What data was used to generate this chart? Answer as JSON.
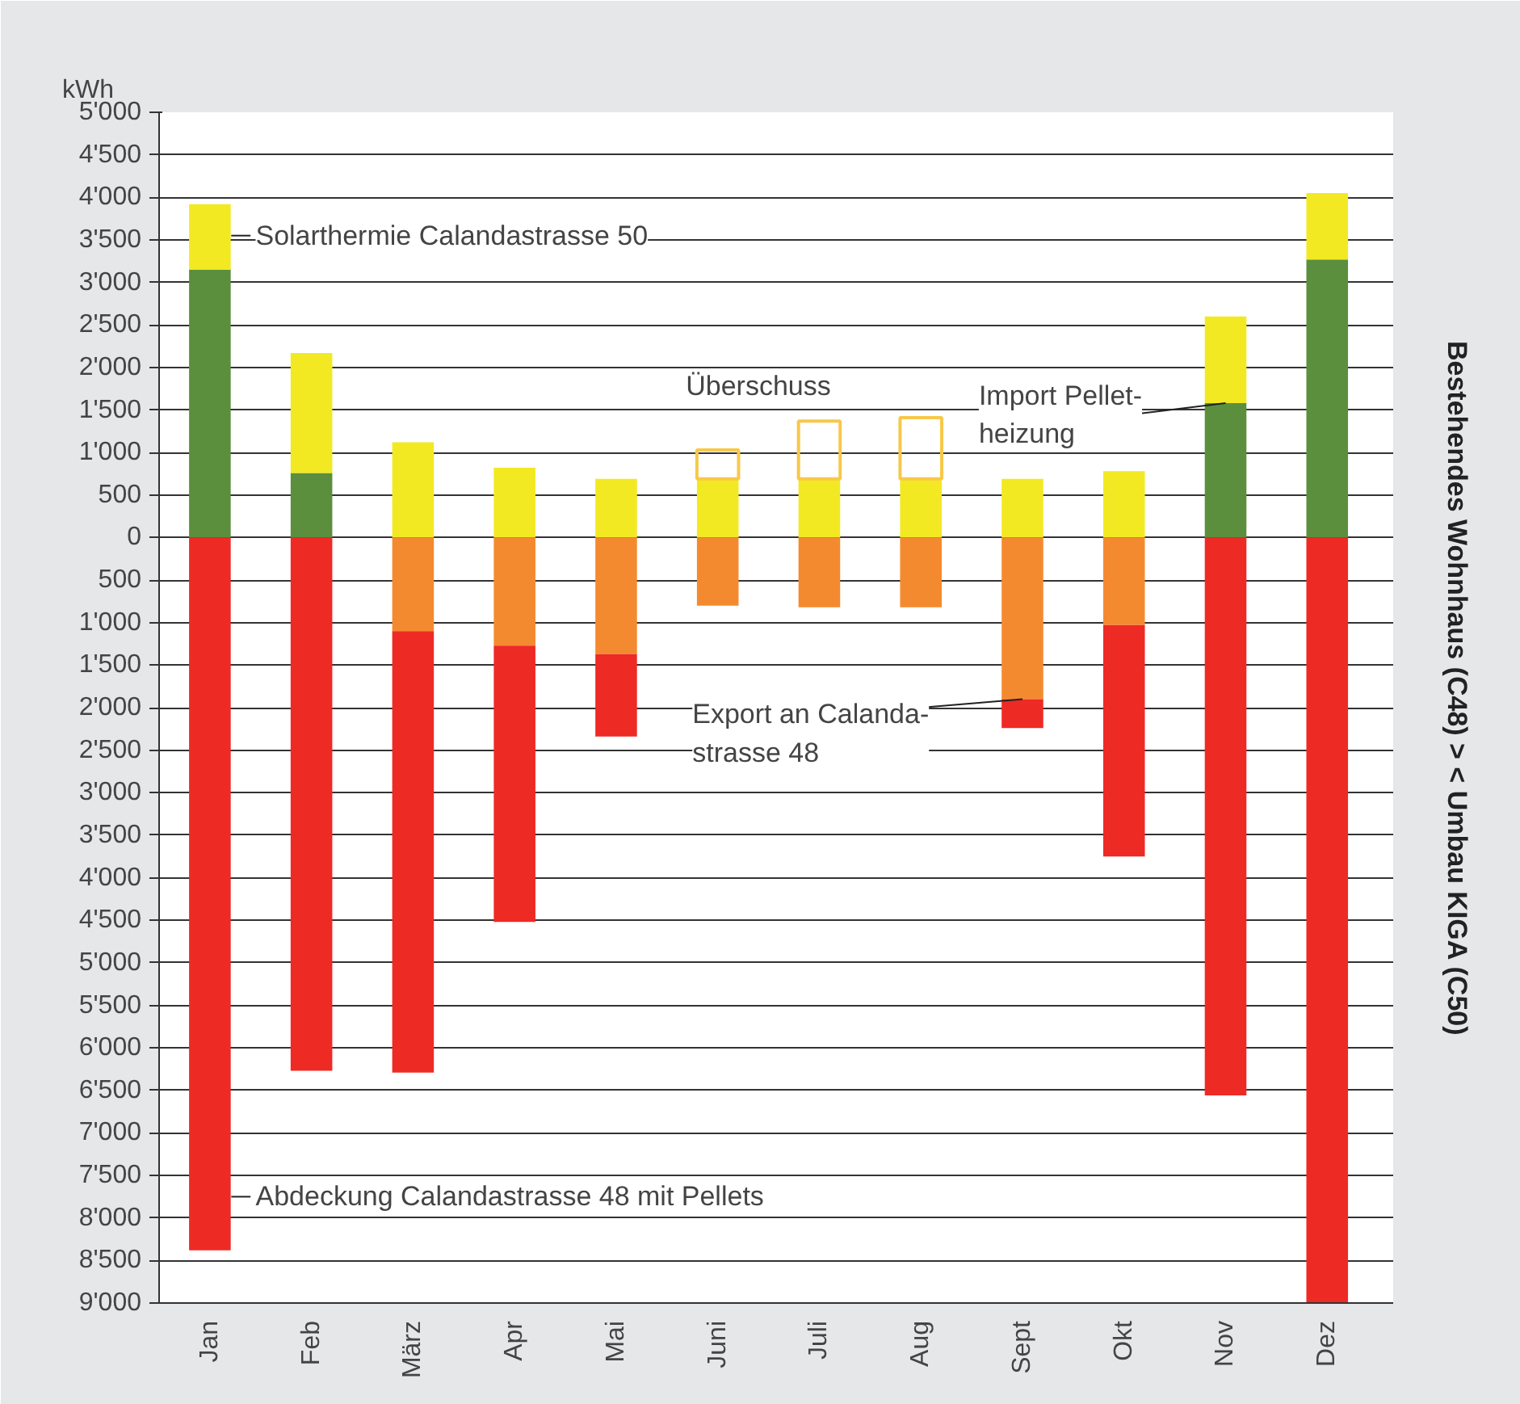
{
  "chart_data": {
    "type": "bar",
    "stacked": true,
    "ylabel": "kWh",
    "categories": [
      "Jan",
      "Feb",
      "März",
      "Apr",
      "Mai",
      "Juni",
      "Juli",
      "Aug",
      "Sept",
      "Okt",
      "Nov",
      "Dez"
    ],
    "series": [
      {
        "color": "#5b8f3e",
        "values": [
          3150,
          760,
          null,
          null,
          null,
          null,
          null,
          null,
          null,
          null,
          1580,
          3270
        ]
      },
      {
        "color": "#f2e923",
        "values": [
          770,
          1410,
          1120,
          820,
          690,
          690,
          690,
          690,
          690,
          780,
          1020,
          780
        ]
      },
      {
        "color": "#f8c84a",
        "line_style": "solid",
        "values": [
          null,
          null,
          null,
          null,
          null,
          340,
          680,
          720,
          null,
          null,
          null,
          null
        ]
      },
      {
        "color": "#f48a2f",
        "values": [
          null,
          null,
          -1100,
          -1270,
          -1370,
          -800,
          -820,
          -820,
          -1900,
          -1030,
          null,
          null
        ]
      },
      {
        "color": "#ee2a25",
        "values": [
          -8380,
          -6270,
          -5190,
          -3250,
          -970,
          null,
          null,
          null,
          -340,
          -2720,
          -6560,
          -9000
        ]
      }
    ],
    "ylim": [
      -9000,
      5000
    ],
    "yticks": [
      {
        "value": -9000,
        "label": "9'000"
      },
      {
        "value": -8500,
        "label": "8'500"
      },
      {
        "value": -8000,
        "label": "8'000"
      },
      {
        "value": -7500,
        "label": "7'500"
      },
      {
        "value": -7000,
        "label": "7'000"
      },
      {
        "value": -6500,
        "label": "6'500"
      },
      {
        "value": -6000,
        "label": "6'000"
      },
      {
        "value": -5500,
        "label": "5'500"
      },
      {
        "value": -5000,
        "label": "5'000"
      },
      {
        "value": -4500,
        "label": "4'500"
      },
      {
        "value": -4000,
        "label": "4'000"
      },
      {
        "value": -3500,
        "label": "3'500"
      },
      {
        "value": -3000,
        "label": "3'000"
      },
      {
        "value": -2500,
        "label": "2'500"
      },
      {
        "value": -2000,
        "label": "2'000"
      },
      {
        "value": -1500,
        "label": "1'500"
      },
      {
        "value": -1000,
        "label": "1'000"
      },
      {
        "value": -500,
        "label": "500"
      },
      0,
      500,
      {
        "value": 1000,
        "label": "1'000"
      },
      {
        "value": 1500,
        "label": "1'500"
      },
      {
        "value": 2000,
        "label": "2'000"
      },
      {
        "value": 2500,
        "label": "2'500"
      },
      {
        "value": 3000,
        "label": "3'000"
      },
      {
        "value": 3500,
        "label": "3'500"
      },
      {
        "value": 4000,
        "label": "4'000"
      },
      {
        "value": 4500,
        "label": "4'500"
      },
      {
        "value": 5000,
        "label": "5'000"
      }
    ],
    "grid": "y",
    "annotations": [
      "Solarthermie Calandastrasse 50",
      {
        "text": "Überschuss",
        "x": "Juni",
        "y": 1030
      },
      {
        "text": "Import Pellet-\nheizung",
        "x": "Nov",
        "y": 1580
      },
      {
        "text": "Export an Calanda-\nstrasse 48",
        "x": "Sept",
        "y": -1900
      },
      "Abdeckung Calandastrasse 48 mit Pellets",
      "Bestehendes Wohnhaus (C48)   >  <   Umbau KIGA (C50)"
    ]
  }
}
